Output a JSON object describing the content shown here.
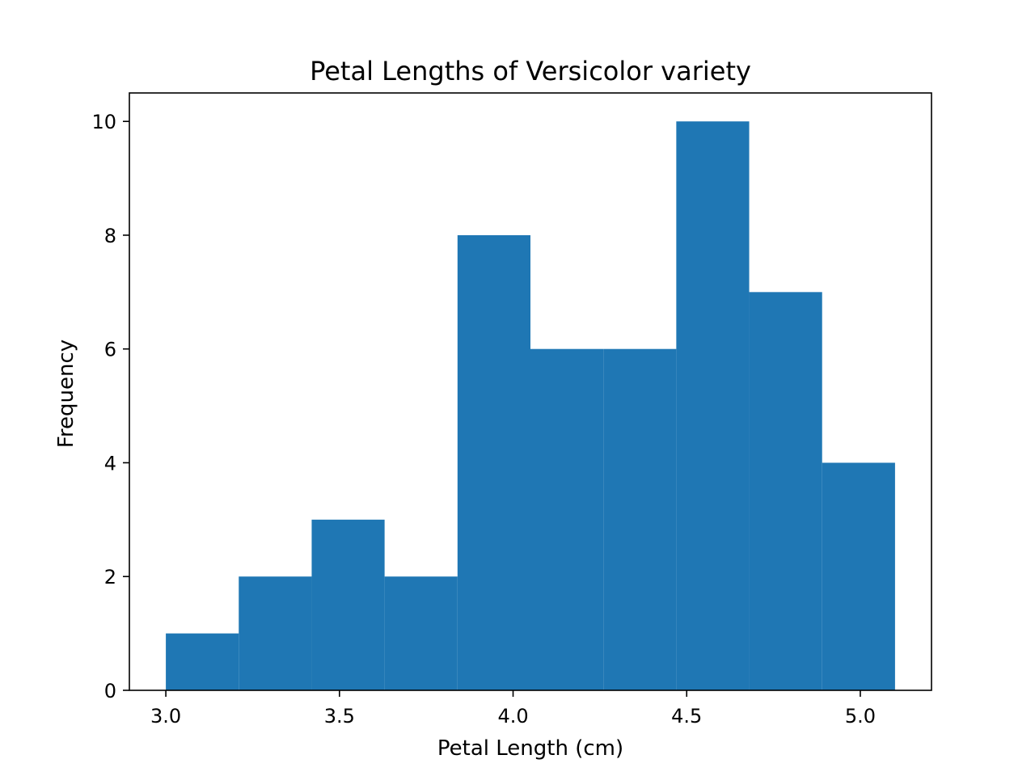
{
  "chart_data": {
    "type": "bar",
    "title": "Petal Lengths of Versicolor variety",
    "xlabel": "Petal Length (cm)",
    "ylabel": "Frequency",
    "bin_edges": [
      3.0,
      3.21,
      3.42,
      3.63,
      3.84,
      4.05,
      4.26,
      4.47,
      4.68,
      4.89,
      5.1
    ],
    "counts": [
      1,
      2,
      3,
      2,
      8,
      6,
      6,
      10,
      7,
      4
    ],
    "xlim": [
      2.895,
      5.205
    ],
    "ylim": [
      0,
      10.5
    ],
    "xticks": [
      3.0,
      3.5,
      4.0,
      4.5,
      5.0
    ],
    "xtick_labels": [
      "3.0",
      "3.5",
      "4.0",
      "4.5",
      "5.0"
    ],
    "yticks": [
      0,
      2,
      4,
      6,
      8,
      10
    ],
    "ytick_labels": [
      "0",
      "2",
      "4",
      "6",
      "8",
      "10"
    ],
    "bar_color": "#1f77b4",
    "grid": false,
    "legend": false
  }
}
